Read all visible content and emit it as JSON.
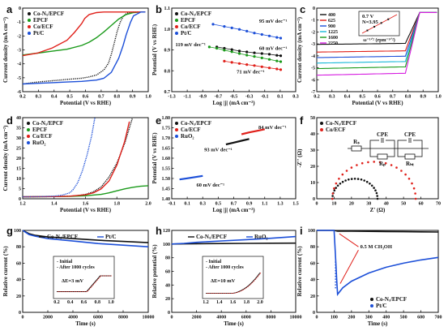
{
  "figure": {
    "colors": {
      "black": "#111111",
      "green": "#1a9a1a",
      "red": "#e0201a",
      "blue": "#1c4fd8",
      "magenta": "#d61ce0",
      "cyan": "#18b8d8",
      "orange": "#e08a1a"
    }
  },
  "chart_data": [
    {
      "panel": "a",
      "type": "line",
      "xlabel": "Potential (V vs RHE)",
      "ylabel": "Current density (mA cm⁻²)",
      "xlim": [
        0.2,
        1.05
      ],
      "ylim": [
        -6.2,
        0.3
      ],
      "xticks": [
        "0.2",
        "0.3",
        "0.4",
        "0.5",
        "0.6",
        "0.7",
        "0.8",
        "0.9",
        "1.0"
      ],
      "yticks": [
        "-6",
        "-5",
        "-4",
        "-3",
        "-2",
        "-1",
        "0"
      ],
      "legend": "top-left",
      "series": [
        {
          "name": "Co-Nₓ/EPCF",
          "color": "black",
          "marker": "dot",
          "x": [
            0.2,
            0.3,
            0.4,
            0.5,
            0.6,
            0.65,
            0.7,
            0.75,
            0.78,
            0.8,
            0.82,
            0.84,
            0.86,
            0.88,
            0.9,
            0.92,
            0.95,
            1.0,
            1.03
          ],
          "y": [
            -5.6,
            -5.45,
            -5.35,
            -5.25,
            -5.15,
            -5.05,
            -4.9,
            -4.5,
            -4.0,
            -3.3,
            -2.4,
            -1.5,
            -0.8,
            -0.35,
            -0.15,
            -0.05,
            0,
            0,
            0
          ]
        },
        {
          "name": "EPCF",
          "color": "green",
          "x": [
            0.2,
            0.3,
            0.4,
            0.5,
            0.6,
            0.65,
            0.7,
            0.75,
            0.8,
            0.85,
            0.9,
            0.95,
            1.0,
            1.03
          ],
          "y": [
            -3.35,
            -3.2,
            -3.05,
            -2.9,
            -2.6,
            -2.35,
            -2.0,
            -1.55,
            -1.05,
            -0.55,
            -0.2,
            -0.05,
            0,
            0
          ]
        },
        {
          "name": "Co/ECF",
          "color": "red",
          "x": [
            0.2,
            0.3,
            0.4,
            0.5,
            0.55,
            0.6,
            0.62,
            0.65,
            0.7,
            0.75,
            0.8,
            0.9,
            1.0,
            1.03
          ],
          "y": [
            -3.4,
            -3.2,
            -2.8,
            -2.2,
            -1.6,
            -0.9,
            -0.5,
            -0.2,
            -0.05,
            0,
            0,
            0,
            0,
            0
          ]
        },
        {
          "name": "Pt/C",
          "color": "blue",
          "x": [
            0.2,
            0.3,
            0.4,
            0.5,
            0.6,
            0.7,
            0.75,
            0.8,
            0.85,
            0.88,
            0.9,
            0.93,
            0.95,
            1.0,
            1.03
          ],
          "y": [
            -5.6,
            -5.55,
            -5.5,
            -5.45,
            -5.4,
            -5.3,
            -5.15,
            -4.7,
            -3.6,
            -2.6,
            -1.8,
            -0.8,
            -0.3,
            0,
            0
          ]
        }
      ]
    },
    {
      "panel": "b",
      "type": "scatter",
      "xlabel": "Log |j| (mA cm⁻²)",
      "ylabel": "Potential (V vs RHE)",
      "xlim": [
        -1.3,
        0.35
      ],
      "ylim": [
        0.6,
        1.17
      ],
      "xticks": [
        "-1.3",
        "-1.1",
        "-0.9",
        "-0.7",
        "-0.5",
        "-0.3",
        "-0.1",
        "0.1",
        "0.3"
      ],
      "yticks": [
        "0.7",
        "0.8",
        "0.9",
        "1.0",
        "1.1"
      ],
      "legend": "top-left",
      "annotations": [
        "95 mV dec⁻¹",
        "119 mV dec⁻¹",
        "60 mV dec⁻¹",
        "71 mV dec⁻¹"
      ],
      "series": [
        {
          "name": "Co-Nₓ/EPCF",
          "color": "black",
          "x": [
            -0.7,
            -0.6,
            -0.5,
            -0.4,
            -0.3,
            -0.2,
            -0.1,
            0.0,
            0.1,
            0.15
          ],
          "y": [
            0.905,
            0.896,
            0.887,
            0.877,
            0.871,
            0.865,
            0.86,
            0.855,
            0.848,
            0.845
          ]
        },
        {
          "name": "EPCF",
          "color": "green",
          "x": [
            -0.8,
            -0.7,
            -0.6,
            -0.5,
            -0.4,
            -0.3,
            -0.2,
            -0.1,
            0.0,
            0.1,
            0.15
          ],
          "y": [
            0.905,
            0.896,
            0.883,
            0.872,
            0.86,
            0.849,
            0.84,
            0.83,
            0.82,
            0.81,
            0.805
          ]
        },
        {
          "name": "Co/ECF",
          "color": "red",
          "x": [
            -0.6,
            -0.5,
            -0.4,
            -0.3,
            -0.2,
            -0.1,
            0.0,
            0.1,
            0.15
          ],
          "y": [
            0.808,
            0.8,
            0.792,
            0.785,
            0.778,
            0.77,
            0.762,
            0.755,
            0.75
          ]
        },
        {
          "name": "Pt/C",
          "color": "blue",
          "x": [
            -0.75,
            -0.6,
            -0.5,
            -0.4,
            -0.3,
            -0.2,
            -0.1,
            0.0,
            0.1,
            0.15
          ],
          "y": [
            1.06,
            1.045,
            1.035,
            1.025,
            1.013,
            1.0,
            0.99,
            0.98,
            0.97,
            0.965
          ]
        }
      ]
    },
    {
      "panel": "c",
      "type": "line",
      "xlabel": "Potential (V vs RHE)",
      "ylabel": "Current density (mA cm⁻²)",
      "xlim": [
        0.2,
        1.05
      ],
      "ylim": [
        -7.2,
        0.4
      ],
      "xticks": [
        "0.2",
        "0.3",
        "0.4",
        "0.5",
        "0.6",
        "0.7",
        "0.8",
        "0.9",
        "1.0"
      ],
      "yticks": [
        "-7",
        "-6",
        "-5",
        "-4",
        "-3",
        "-2",
        "-1",
        "0"
      ],
      "legend": "top-left",
      "inset": {
        "text1": "0.7 V",
        "text2": "N=3.95",
        "xlabel": "ω⁻¹ᐟ² (rpm⁻¹ᐟ²)",
        "ylabel": "J⁻¹ (mA⁻¹ cm²)",
        "xticks": [
          "0.02",
          "0.03",
          "0.04",
          "0.05"
        ],
        "yticks": [
          "0.16",
          "0.20",
          "0.24",
          "0.28"
        ]
      },
      "series": [
        {
          "name": "400",
          "color": "black",
          "plateau": -2.9
        },
        {
          "name": "625",
          "color": "red",
          "plateau": -3.6
        },
        {
          "name": "900",
          "color": "blue",
          "plateau": -4.1
        },
        {
          "name": "1225",
          "color": "cyan",
          "plateau": -4.6
        },
        {
          "name": "1600",
          "color": "green",
          "plateau": -5.1
        },
        {
          "name": "2250",
          "color": "magenta",
          "plateau": -5.7
        }
      ]
    },
    {
      "panel": "d",
      "type": "line",
      "xlabel": "Potential (V vs RHE)",
      "ylabel": "Current density (mA cm⁻²)",
      "xlim": [
        1.2,
        2.0
      ],
      "ylim": [
        -1,
        40
      ],
      "xticks": [
        "1.2",
        "1.4",
        "1.6",
        "1.8",
        "2.0"
      ],
      "yticks": [
        "0",
        "5",
        "10",
        "15",
        "20",
        "25",
        "30",
        "35",
        "40"
      ],
      "legend": "top-left",
      "series": [
        {
          "name": "Co-Nₓ/EPCF",
          "color": "black",
          "x": [
            1.2,
            1.4,
            1.5,
            1.55,
            1.6,
            1.65,
            1.7,
            1.75,
            1.8,
            1.85,
            1.9
          ],
          "y": [
            0,
            0.1,
            0.3,
            0.6,
            1.2,
            2.5,
            5,
            10,
            17,
            27,
            40
          ]
        },
        {
          "name": "EPCF",
          "color": "green",
          "x": [
            1.2,
            1.4,
            1.5,
            1.6,
            1.7,
            1.75,
            1.8,
            1.85,
            1.9,
            1.95,
            2.0
          ],
          "y": [
            0,
            0.1,
            0.2,
            0.5,
            1.2,
            2,
            3,
            4,
            4.8,
            5.3,
            5.6
          ]
        },
        {
          "name": "Co/ECF",
          "color": "red",
          "x": [
            1.2,
            1.4,
            1.5,
            1.6,
            1.65,
            1.7,
            1.75,
            1.8,
            1.85,
            1.88
          ],
          "y": [
            0,
            0.1,
            0.3,
            1,
            2,
            4,
            8,
            16,
            28,
            38
          ]
        },
        {
          "name": "RuO₂",
          "color": "blue",
          "x": [
            1.2,
            1.3,
            1.4,
            1.45,
            1.5,
            1.52,
            1.55,
            1.58,
            1.61,
            1.64,
            1.66
          ],
          "y": [
            0,
            0.05,
            0.3,
            0.8,
            2,
            3.5,
            7,
            13,
            21,
            31,
            40
          ]
        }
      ]
    },
    {
      "panel": "e",
      "type": "scatter",
      "xlabel": "Log |j| (mA cm⁻²)",
      "ylabel": "Potential (V vs RHE)",
      "xlim": [
        -0.1,
        1.5
      ],
      "ylim": [
        1.4,
        1.8
      ],
      "xticks": [
        "-0.1",
        "0.1",
        "0.3",
        "0.5",
        "0.7",
        "0.9",
        "1.1",
        "1.3",
        "1.5"
      ],
      "yticks": [
        "1.40",
        "1.45",
        "1.50",
        "1.55",
        "1.60",
        "1.65",
        "1.70",
        "1.75",
        "1.80"
      ],
      "legend": "top-left",
      "annotations": [
        "84 mV dec⁻¹",
        "93 mV dec⁻¹",
        "60 mV dec⁻¹"
      ],
      "series": [
        {
          "name": "Co-Nₓ/EPCF",
          "color": "black",
          "x": [
            0.6,
            0.7,
            0.8,
            0.9
          ],
          "y": [
            1.668,
            1.677,
            1.686,
            1.695
          ]
        },
        {
          "name": "Co/ECF",
          "color": "red",
          "x": [
            0.8,
            0.9,
            1.0,
            1.1
          ],
          "y": [
            1.718,
            1.727,
            1.735,
            1.743
          ]
        },
        {
          "name": "RuO₂",
          "color": "blue",
          "x": [
            0.0,
            0.1,
            0.2,
            0.3
          ],
          "y": [
            1.495,
            1.501,
            1.507,
            1.513
          ]
        }
      ]
    },
    {
      "panel": "f",
      "type": "scatter",
      "xlabel": "Z' (Ω)",
      "ylabel": "-Z'' (Ω)",
      "xlim": [
        0,
        70
      ],
      "ylim": [
        0,
        50
      ],
      "xticks": [
        "0",
        "10",
        "20",
        "30",
        "40",
        "50",
        "60",
        "70"
      ],
      "yticks": [
        "0",
        "10",
        "20",
        "30",
        "40",
        "50"
      ],
      "legend": "top-left",
      "circuit_labels": [
        "Rₛ",
        "CPE",
        "CPE",
        "Rₚ",
        "Rₕₜ"
      ],
      "series": [
        {
          "name": "Co-Nₓ/EPCF",
          "color": "black",
          "center": 22,
          "radius": 13
        },
        {
          "name": "Co/ECF",
          "color": "red",
          "center": 33,
          "radius": 24
        }
      ]
    },
    {
      "panel": "g",
      "type": "line",
      "xlabel": "Time (s)",
      "ylabel": "Relative current (%)",
      "xlim": [
        0,
        10000
      ],
      "ylim": [
        0,
        100
      ],
      "xticks": [
        "0",
        "2000",
        "4000",
        "6000",
        "8000",
        "10000"
      ],
      "yticks": [
        "0",
        "20",
        "40",
        "60",
        "80",
        "100"
      ],
      "legend": "top-right",
      "inset": {
        "legend": [
          "Initial",
          "After 1000 cycles"
        ],
        "text": "ΔE=3 mV",
        "xticks": [
          "0.2",
          "0.4",
          "0.6",
          "0.8",
          "1.0"
        ]
      },
      "series": [
        {
          "name": "Co-Nₓ/EPCF",
          "color": "black",
          "x": [
            0,
            500,
            1000,
            2000,
            4000,
            6000,
            8000,
            10000
          ],
          "y": [
            100,
            96,
            94,
            92,
            90,
            88,
            86.5,
            85
          ]
        },
        {
          "name": "Pt/C",
          "color": "blue",
          "x": [
            0,
            500,
            1000,
            2000,
            4000,
            6000,
            8000,
            10000
          ],
          "y": [
            100,
            95,
            93,
            90,
            87,
            84,
            82,
            80
          ]
        }
      ]
    },
    {
      "panel": "h",
      "type": "line",
      "xlabel": "Time (s)",
      "ylabel": "Relative potential (%)",
      "xlim": [
        0,
        10000
      ],
      "ylim": [
        0,
        120
      ],
      "xticks": [
        "0",
        "2000",
        "4000",
        "6000",
        "8000",
        "10000"
      ],
      "yticks": [
        "0",
        "20",
        "40",
        "60",
        "80",
        "100",
        "120"
      ],
      "legend": "top-right",
      "inset": {
        "legend": [
          "Initial",
          "After 1000 cycles"
        ],
        "text": "ΔE=10 mV",
        "xticks": [
          "1.2",
          "1.4",
          "1.6",
          "1.8",
          "2.0"
        ]
      },
      "series": [
        {
          "name": "Co-Nₓ/EPCF",
          "color": "black",
          "x": [
            0,
            1000,
            2000,
            4000,
            6000,
            8000,
            10000
          ],
          "y": [
            100,
            100.3,
            100.5,
            100.8,
            101,
            101.2,
            101.4
          ]
        },
        {
          "name": "RuO₂",
          "color": "blue",
          "x": [
            0,
            1000,
            2000,
            4000,
            6000,
            8000,
            10000
          ],
          "y": [
            100,
            101,
            102.5,
            104.5,
            106.5,
            108.5,
            111
          ]
        }
      ]
    },
    {
      "panel": "i",
      "type": "line",
      "xlabel": "Time (s)",
      "ylabel": "Relative current (%)",
      "xlim": [
        0,
        700
      ],
      "ylim": [
        0,
        100
      ],
      "xticks": [
        "0",
        "100",
        "200",
        "300",
        "400",
        "500",
        "600",
        "700"
      ],
      "yticks": [
        "0",
        "20",
        "40",
        "60",
        "80",
        "100"
      ],
      "legend": "bottom-right",
      "annotation": "0.5 M CH₃OH",
      "series": [
        {
          "name": "Co-Nₓ/EPCF",
          "color": "black",
          "x": [
            0,
            100,
            120,
            200,
            300,
            400,
            500,
            600,
            700
          ],
          "y": [
            100,
            100,
            99,
            99,
            98.8,
            98.6,
            98.4,
            98.2,
            98
          ]
        },
        {
          "name": "Pt/C",
          "color": "blue",
          "x": [
            0,
            100,
            110,
            115,
            120,
            150,
            200,
            300,
            400,
            500,
            600,
            700
          ],
          "y": [
            100,
            100,
            60,
            40,
            22,
            30,
            38,
            48,
            55,
            60,
            64,
            67
          ]
        }
      ]
    }
  ]
}
